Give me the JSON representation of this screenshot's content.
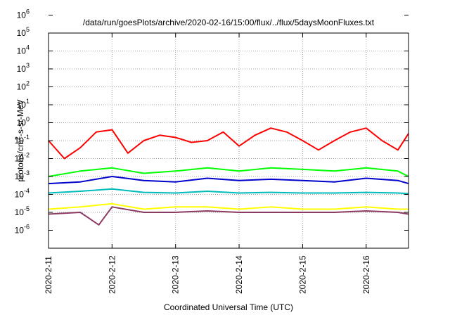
{
  "chart_data": {
    "type": "line",
    "title": "/data/run/goesPlots/archive/2020-02-16/15:00/flux/../flux/5daysMoonFluxes.txt",
    "xlabel": "Coordinated Universal Time (UTC)",
    "ylabel": {
      "prefix": "protons/cm",
      "superscript": "2",
      "suffix": "-s-sr-MeV"
    },
    "y_scale": "log",
    "ylim": [
      "1e-6",
      "1e6"
    ],
    "y_ticks": [
      {
        "base": "10",
        "exp": "6"
      },
      {
        "base": "10",
        "exp": "5"
      },
      {
        "base": "10",
        "exp": "4"
      },
      {
        "base": "10",
        "exp": "3"
      },
      {
        "base": "10",
        "exp": "2"
      },
      {
        "base": "10",
        "exp": "1"
      },
      {
        "base": "10",
        "exp": "0"
      },
      {
        "base": "10",
        "exp": "-1"
      },
      {
        "base": "10",
        "exp": "-2"
      },
      {
        "base": "10",
        "exp": "-3"
      },
      {
        "base": "10",
        "exp": "-4"
      },
      {
        "base": "10",
        "exp": "-5"
      },
      {
        "base": "10",
        "exp": "-6"
      }
    ],
    "xlim": [
      "2020-02-11",
      "2020-02-16 16:00"
    ],
    "x_ticks": [
      "2020-2-11",
      "2020-2-12",
      "2020-2-13",
      "2020-2-14",
      "2020-2-15",
      "2020-2-16"
    ],
    "grid": true,
    "series": [
      {
        "color": "#ff0000",
        "x": [
          "2020-02-11 00:00",
          "2020-02-11 06:00",
          "2020-02-11 12:00",
          "2020-02-11 18:00",
          "2020-02-12 00:00",
          "2020-02-12 06:00",
          "2020-02-12 12:00",
          "2020-02-12 18:00",
          "2020-02-13 00:00",
          "2020-02-13 06:00",
          "2020-02-13 12:00",
          "2020-02-13 18:00",
          "2020-02-14 00:00",
          "2020-02-14 06:00",
          "2020-02-14 12:00",
          "2020-02-14 18:00",
          "2020-02-15 00:00",
          "2020-02-15 06:00",
          "2020-02-15 12:00",
          "2020-02-15 18:00",
          "2020-02-16 00:00",
          "2020-02-16 06:00",
          "2020-02-16 12:00",
          "2020-02-16 16:00"
        ],
        "y": [
          1.0,
          0.1,
          0.4,
          3.0,
          4.0,
          0.2,
          1.0,
          2.0,
          1.5,
          0.8,
          1.0,
          3.0,
          0.5,
          2.0,
          5.0,
          3.0,
          1.0,
          0.3,
          1.0,
          3.0,
          5.0,
          1.0,
          0.3,
          2.5
        ]
      },
      {
        "color": "#00ff00",
        "x": [
          "2020-02-11 00:00",
          "2020-02-11 12:00",
          "2020-02-12 00:00",
          "2020-02-12 12:00",
          "2020-02-13 00:00",
          "2020-02-13 12:00",
          "2020-02-14 00:00",
          "2020-02-14 12:00",
          "2020-02-15 00:00",
          "2020-02-15 12:00",
          "2020-02-16 00:00",
          "2020-02-16 12:00",
          "2020-02-16 16:00"
        ],
        "y": [
          0.01,
          0.02,
          0.03,
          0.015,
          0.02,
          0.03,
          0.02,
          0.03,
          0.025,
          0.02,
          0.03,
          0.02,
          0.01
        ]
      },
      {
        "color": "#0000cc",
        "x": [
          "2020-02-11 00:00",
          "2020-02-11 12:00",
          "2020-02-12 00:00",
          "2020-02-12 12:00",
          "2020-02-13 00:00",
          "2020-02-13 12:00",
          "2020-02-14 00:00",
          "2020-02-14 12:00",
          "2020-02-15 00:00",
          "2020-02-15 12:00",
          "2020-02-16 00:00",
          "2020-02-16 12:00",
          "2020-02-16 16:00"
        ],
        "y": [
          0.004,
          0.005,
          0.01,
          0.006,
          0.005,
          0.008,
          0.006,
          0.007,
          0.006,
          0.005,
          0.008,
          0.006,
          0.004
        ]
      },
      {
        "color": "#00bbbb",
        "x": [
          "2020-02-11 00:00",
          "2020-02-11 12:00",
          "2020-02-12 00:00",
          "2020-02-12 12:00",
          "2020-02-13 00:00",
          "2020-02-13 12:00",
          "2020-02-14 00:00",
          "2020-02-14 12:00",
          "2020-02-15 00:00",
          "2020-02-15 12:00",
          "2020-02-16 00:00",
          "2020-02-16 12:00",
          "2020-02-16 16:00"
        ],
        "y": [
          0.0012,
          0.0015,
          0.002,
          0.0013,
          0.0012,
          0.0015,
          0.0012,
          0.0013,
          0.0012,
          0.0012,
          0.0013,
          0.0012,
          0.0011
        ]
      },
      {
        "color": "#ffff00",
        "x": [
          "2020-02-11 00:00",
          "2020-02-11 12:00",
          "2020-02-12 00:00",
          "2020-02-12 12:00",
          "2020-02-13 00:00",
          "2020-02-13 12:00",
          "2020-02-14 00:00",
          "2020-02-14 12:00",
          "2020-02-15 00:00",
          "2020-02-15 12:00",
          "2020-02-16 00:00",
          "2020-02-16 12:00",
          "2020-02-16 16:00"
        ],
        "y": [
          0.00015,
          0.0002,
          0.0003,
          0.00015,
          0.0002,
          0.0002,
          0.00015,
          0.0002,
          0.00015,
          0.00015,
          0.0002,
          0.00015,
          0.00015
        ]
      },
      {
        "color": "#8b3a62",
        "x": [
          "2020-02-11 00:00",
          "2020-02-11 12:00",
          "2020-02-11 19:00",
          "2020-02-12 00:00",
          "2020-02-12 12:00",
          "2020-02-13 00:00",
          "2020-02-13 12:00",
          "2020-02-14 00:00",
          "2020-02-14 12:00",
          "2020-02-15 00:00",
          "2020-02-15 12:00",
          "2020-02-16 00:00",
          "2020-02-16 12:00",
          "2020-02-16 16:00"
        ],
        "y": [
          8e-05,
          0.0001,
          2e-05,
          0.0002,
          0.0001,
          0.0001,
          0.00012,
          0.0001,
          0.0001,
          0.0001,
          0.0001,
          0.00012,
          0.0001,
          8e-05
        ]
      }
    ]
  }
}
